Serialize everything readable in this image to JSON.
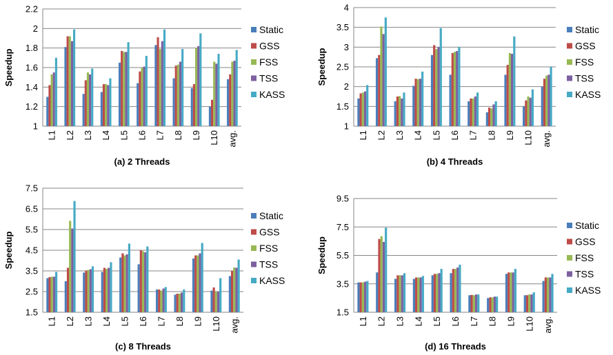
{
  "chart_data": [
    {
      "type": "bar",
      "title": "(a) 2 Threads",
      "xlabel": "",
      "ylabel": "Speedup",
      "ylim": [
        1,
        2.2
      ],
      "yticks": [
        "1",
        "1.2",
        "1.4",
        "1.6",
        "1.8",
        "2",
        "2.2"
      ],
      "grid": true,
      "legend": "right",
      "categories": [
        "L1",
        "L2",
        "L3",
        "L4",
        "L5",
        "L6",
        "L7",
        "L8",
        "L9",
        "L10",
        "avg."
      ],
      "series": [
        {
          "name": "Static",
          "values": [
            1.3,
            1.81,
            1.33,
            1.35,
            1.65,
            1.44,
            1.83,
            1.49,
            1.39,
            1.2,
            1.48
          ]
        },
        {
          "name": "GSS",
          "values": [
            1.42,
            1.92,
            1.47,
            1.43,
            1.77,
            1.56,
            1.91,
            1.62,
            1.43,
            1.27,
            1.53
          ]
        },
        {
          "name": "FSS",
          "values": [
            1.53,
            1.92,
            1.55,
            1.43,
            1.76,
            1.6,
            1.79,
            1.63,
            1.8,
            1.66,
            1.66
          ]
        },
        {
          "name": "TSS",
          "values": [
            1.55,
            1.87,
            1.53,
            1.42,
            1.76,
            1.61,
            1.87,
            1.66,
            1.82,
            1.64,
            1.67
          ]
        },
        {
          "name": "KASS",
          "values": [
            1.7,
            1.99,
            1.59,
            1.49,
            1.86,
            1.72,
            1.99,
            1.79,
            1.95,
            1.74,
            1.78
          ]
        }
      ]
    },
    {
      "type": "bar",
      "title": "(b) 4 Threads",
      "xlabel": "",
      "ylabel": "Speedup",
      "ylim": [
        1,
        4
      ],
      "yticks": [
        "1",
        "1.5",
        "2",
        "2.5",
        "3",
        "3.5",
        "4"
      ],
      "grid": true,
      "legend": "right",
      "categories": [
        "L1",
        "L2",
        "L3",
        "L4",
        "L5",
        "L6",
        "L7",
        "L8",
        "L9",
        "L10",
        "avg."
      ],
      "series": [
        {
          "name": "Static",
          "values": [
            1.7,
            2.72,
            1.63,
            2.02,
            2.8,
            2.3,
            1.63,
            1.35,
            2.3,
            1.5,
            2.0
          ]
        },
        {
          "name": "GSS",
          "values": [
            1.83,
            2.8,
            1.75,
            2.2,
            3.05,
            2.85,
            1.7,
            1.47,
            2.55,
            1.65,
            2.2
          ]
        },
        {
          "name": "FSS",
          "values": [
            1.85,
            3.52,
            1.76,
            2.19,
            2.95,
            2.88,
            1.7,
            1.45,
            2.85,
            1.75,
            2.28
          ]
        },
        {
          "name": "TSS",
          "values": [
            1.88,
            3.33,
            1.7,
            2.2,
            3.0,
            2.9,
            1.75,
            1.55,
            2.83,
            1.72,
            2.3
          ]
        },
        {
          "name": "KASS",
          "values": [
            2.04,
            3.75,
            1.85,
            2.38,
            3.48,
            3.0,
            1.85,
            1.63,
            3.27,
            1.93,
            2.5
          ]
        }
      ]
    },
    {
      "type": "bar",
      "title": "(c) 8 Threads",
      "xlabel": "",
      "ylabel": "Speedup",
      "ylim": [
        1.5,
        7.5
      ],
      "yticks": [
        "1.5",
        "2.5",
        "3.5",
        "4.5",
        "5.5",
        "6.5",
        "7.5"
      ],
      "grid": true,
      "legend": "right",
      "categories": [
        "L1",
        "L2",
        "L3",
        "L4",
        "L5",
        "L6",
        "L7",
        "L8",
        "L9",
        "L10",
        "avg."
      ],
      "series": [
        {
          "name": "Static",
          "values": [
            3.15,
            3.0,
            3.42,
            3.45,
            4.15,
            3.82,
            2.6,
            2.35,
            4.1,
            2.55,
            3.25
          ]
        },
        {
          "name": "GSS",
          "values": [
            3.2,
            3.65,
            3.52,
            3.65,
            4.35,
            4.5,
            2.6,
            2.4,
            4.25,
            2.7,
            3.5
          ]
        },
        {
          "name": "FSS",
          "values": [
            3.22,
            5.92,
            3.55,
            3.6,
            4.25,
            4.45,
            2.55,
            2.4,
            4.25,
            2.5,
            3.67
          ]
        },
        {
          "name": "TSS",
          "values": [
            3.22,
            5.55,
            3.58,
            3.65,
            4.3,
            4.4,
            2.65,
            2.45,
            4.35,
            2.5,
            3.65
          ]
        },
        {
          "name": "KASS",
          "values": [
            3.45,
            6.88,
            3.72,
            3.92,
            4.82,
            4.68,
            2.72,
            2.6,
            4.85,
            3.15,
            4.05
          ]
        }
      ]
    },
    {
      "type": "bar",
      "title": "(d) 16 Threads",
      "xlabel": "",
      "ylabel": "Speedup",
      "ylim": [
        1.5,
        9.5
      ],
      "yticks": [
        "1.5",
        "3.5",
        "5.5",
        "7.5",
        "9.5"
      ],
      "grid": true,
      "legend": "right",
      "categories": [
        "L1",
        "L2",
        "L3",
        "L4",
        "L5",
        "L6",
        "L7",
        "L8",
        "L9",
        "L10",
        "avg."
      ],
      "series": [
        {
          "name": "Static",
          "values": [
            3.6,
            4.3,
            3.85,
            3.85,
            4.1,
            4.25,
            2.7,
            2.5,
            4.2,
            2.7,
            3.7
          ]
        },
        {
          "name": "GSS",
          "values": [
            3.6,
            6.65,
            4.1,
            3.95,
            4.2,
            4.55,
            2.72,
            2.55,
            4.3,
            2.7,
            3.95
          ]
        },
        {
          "name": "FSS",
          "values": [
            3.6,
            6.85,
            4.1,
            3.95,
            4.2,
            4.55,
            2.7,
            2.55,
            4.3,
            2.75,
            3.95
          ]
        },
        {
          "name": "TSS",
          "values": [
            3.65,
            6.45,
            4.1,
            3.95,
            4.25,
            4.65,
            2.75,
            2.6,
            4.3,
            2.75,
            3.95
          ]
        },
        {
          "name": "KASS",
          "values": [
            3.7,
            7.45,
            4.25,
            4.05,
            4.55,
            4.85,
            2.75,
            2.6,
            4.55,
            2.9,
            4.2
          ]
        }
      ]
    }
  ],
  "colors": {
    "Static": "#4a7ebb",
    "GSS": "#be4b48",
    "FSS": "#98b954",
    "TSS": "#7d60a0",
    "KASS": "#46aac5",
    "grid": "#868686",
    "axis": "#868686"
  }
}
